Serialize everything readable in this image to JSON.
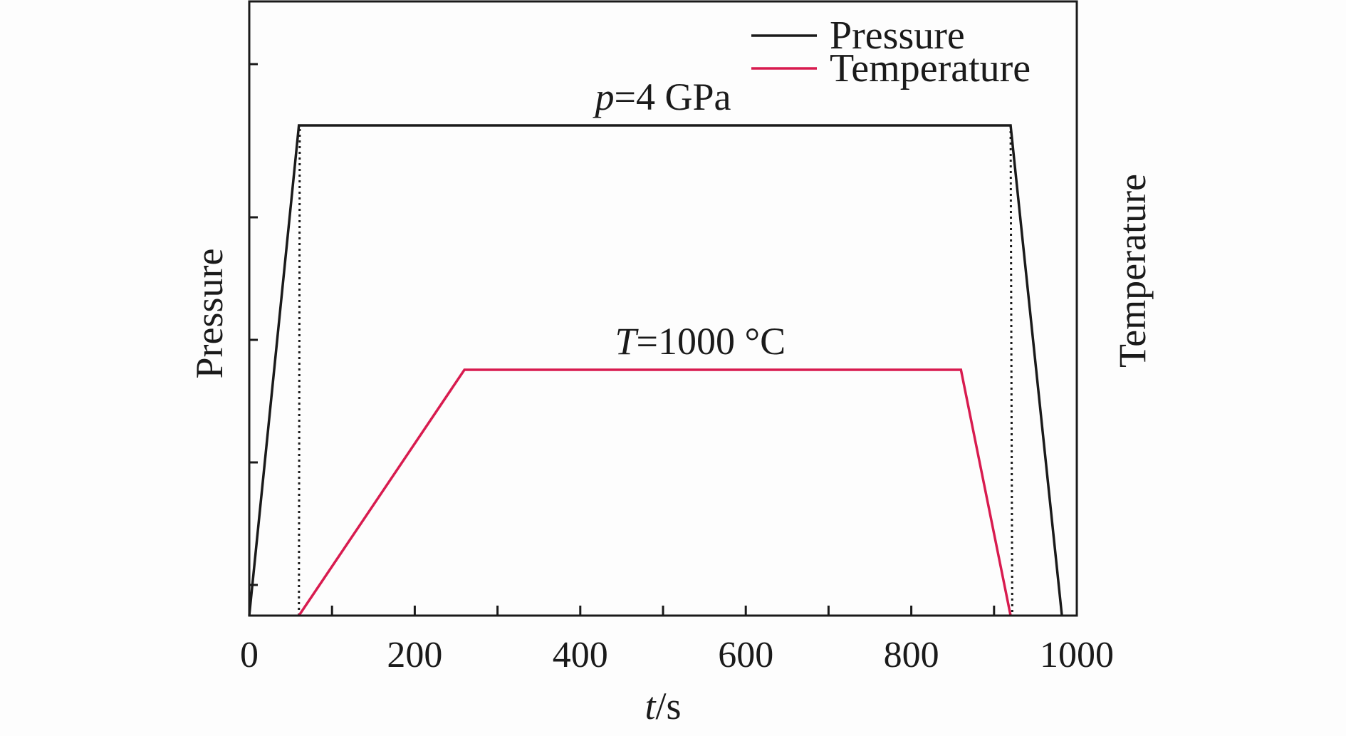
{
  "chart_data": {
    "type": "line",
    "xlabel": {
      "var": "t",
      "unit": "/s"
    },
    "ylabel_left": "Pressure",
    "ylabel_right": "Temperature",
    "xlim": [
      0,
      1000
    ],
    "x_tick_labels": [
      "0",
      "200",
      "400",
      "600",
      "800",
      "1000"
    ],
    "x_ticks_minor": [
      100,
      300,
      500,
      700,
      900
    ],
    "grid": false,
    "legend_position": "top-right",
    "series": [
      {
        "name": "Pressure",
        "color": "#1a1a1a",
        "x": [
          0,
          60,
          920,
          982
        ],
        "y": [
          0,
          4,
          4,
          0
        ],
        "y_unit": "GPa"
      },
      {
        "name": "Temperature",
        "color": "#d81b4f",
        "x": [
          60,
          260,
          860,
          920
        ],
        "y": [
          0,
          1000,
          1000,
          0
        ],
        "y_unit": "°C"
      }
    ],
    "reference_lines": [
      {
        "style": "dotted",
        "x": [
          60,
          61
        ],
        "y_unit": "GPa",
        "y": [
          0,
          4
        ]
      },
      {
        "style": "dotted",
        "x": [
          920,
          922
        ],
        "y_unit": "GPa",
        "y": [
          4,
          0
        ]
      }
    ],
    "annotations": [
      {
        "italic": "p",
        "rest": "=4 GPa",
        "anchor_series": "Pressure",
        "anchor_x": 500,
        "anchor_y": 4
      },
      {
        "italic": "T",
        "rest": "=1000 °C",
        "anchor_series": "Temperature",
        "anchor_x": 545,
        "anchor_y": 1000
      }
    ]
  }
}
